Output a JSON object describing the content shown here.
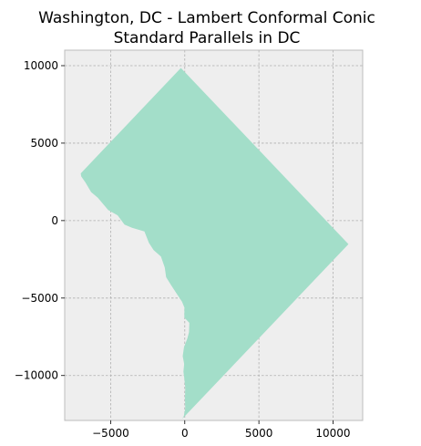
{
  "map": {
    "title_line1": "Washington, DC - Lambert Conformal Conic",
    "title_line2": "Standard Parallels in DC",
    "background_color": "#eeeeee",
    "grid_color": "#b0b0b0",
    "frame_color": "#bcbcbc",
    "fill_color": "#a3dec9",
    "x_ticks": [
      -5000,
      0,
      5000,
      10000
    ],
    "y_ticks": [
      10000,
      5000,
      0,
      -5000,
      -10000
    ],
    "xlim": [
      -8100,
      12000
    ],
    "ylim": [
      -12900,
      11000
    ],
    "boundary": [
      [
        -265,
        9850
      ],
      [
        11040,
        -1520
      ],
      [
        -165,
        -12790
      ],
      [
        -60,
        -12600
      ],
      [
        30,
        -12100
      ],
      [
        15,
        -11500
      ],
      [
        35,
        -10800
      ],
      [
        -20,
        -10300
      ],
      [
        -90,
        -9750
      ],
      [
        -40,
        -9250
      ],
      [
        -140,
        -8750
      ],
      [
        -55,
        -8180
      ],
      [
        175,
        -7600
      ],
      [
        285,
        -7200
      ],
      [
        310,
        -6600
      ],
      [
        -30,
        -6260
      ],
      [
        -25,
        -5620
      ],
      [
        -190,
        -5230
      ],
      [
        -520,
        -4750
      ],
      [
        -930,
        -4150
      ],
      [
        -1260,
        -3650
      ],
      [
        -1350,
        -3020
      ],
      [
        -1610,
        -2320
      ],
      [
        -2100,
        -1910
      ],
      [
        -2420,
        -1440
      ],
      [
        -2720,
        -700
      ],
      [
        -3560,
        -460
      ],
      [
        -4070,
        -260
      ],
      [
        -4530,
        340
      ],
      [
        -5170,
        680
      ],
      [
        -5870,
        1480
      ],
      [
        -6320,
        1840
      ],
      [
        -6700,
        2460
      ],
      [
        -6990,
        2850
      ],
      [
        -7020,
        3050
      ]
    ]
  }
}
